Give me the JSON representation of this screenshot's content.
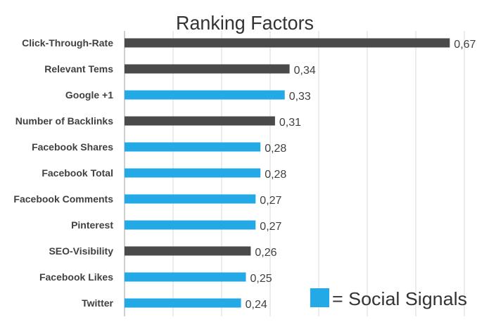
{
  "chart_data": {
    "type": "bar",
    "orientation": "horizontal",
    "title": "Ranking Factors",
    "xlabel": "",
    "ylabel": "",
    "xlim": [
      0,
      0.7
    ],
    "grid": true,
    "categories": [
      "Click-Through-Rate",
      "Relevant Tems",
      "Google +1",
      "Number of Backlinks",
      "Facebook Shares",
      "Facebook Total",
      "Facebook Comments",
      "Pinterest",
      "SEO-Visibility",
      "Facebook Likes",
      "Twitter"
    ],
    "values": [
      0.67,
      0.34,
      0.33,
      0.31,
      0.28,
      0.28,
      0.27,
      0.27,
      0.26,
      0.25,
      0.24
    ],
    "value_labels": [
      "0,67",
      "0,34",
      "0,33",
      "0,31",
      "0,28",
      "0,28",
      "0,27",
      "0,27",
      "0,26",
      "0,25",
      "0,24"
    ],
    "social_signal": [
      false,
      false,
      true,
      false,
      true,
      true,
      true,
      true,
      false,
      true,
      true
    ],
    "colors": {
      "default": "#4a4a4a",
      "social": "#22a9e6",
      "grid": "#e6e6e6",
      "axis": "#bfbfbf",
      "text": "#404040"
    },
    "legend": {
      "label": "= Social Signals",
      "color": "#22a9e6",
      "placement": "bottom-right"
    }
  }
}
